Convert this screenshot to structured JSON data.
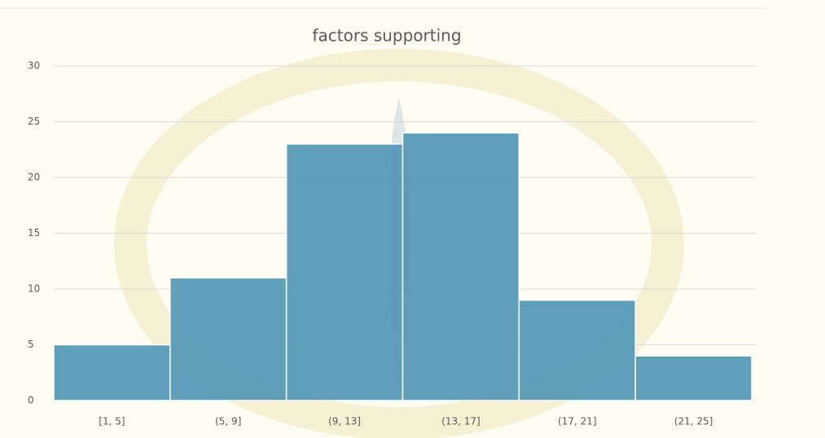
{
  "chart_data": {
    "type": "bar",
    "title": "factors supporting",
    "categories": [
      "[1, 5]",
      "(5, 9]",
      "(9, 13]",
      "(13, 17]",
      "(17, 21]",
      "(21, 25]"
    ],
    "values": [
      5,
      11,
      23,
      24,
      9,
      4
    ],
    "color": "#4f95b4",
    "ylim": [
      0,
      30
    ],
    "yticks": [
      0,
      5,
      10,
      15,
      20,
      25,
      30
    ],
    "grid": true
  }
}
